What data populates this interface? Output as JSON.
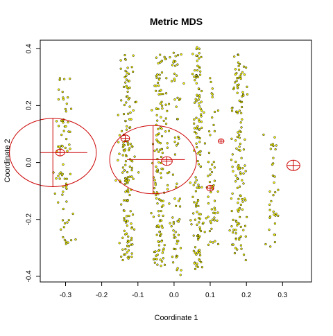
{
  "chart_data": {
    "type": "scatter",
    "title": "Metric MDS",
    "xlabel": "Coordinate 1",
    "ylabel": "Coordinate 2",
    "xlim": [
      -0.37,
      0.38
    ],
    "ylim": [
      -0.42,
      0.43
    ],
    "x_ticks": [
      -0.3,
      -0.2,
      -0.1,
      0.0,
      0.1,
      0.2,
      0.3
    ],
    "x_tick_labels": [
      "-0.3",
      "-0.2",
      "-0.1",
      "0.0",
      "0.1",
      "0.2",
      "0.3"
    ],
    "y_ticks": [
      -0.4,
      -0.2,
      0.0,
      0.2,
      0.4
    ],
    "y_tick_labels": [
      "-0.4",
      "-0.2",
      "0.0",
      "0.2",
      "0.4"
    ],
    "grid": false,
    "point_style": {
      "fill": "#ffff00",
      "stroke": "#000000"
    },
    "point_clusters": [
      {
        "x_center": -0.305,
        "x_spread": 0.022,
        "y_range": [
          -0.3,
          0.3
        ],
        "count": 75
      },
      {
        "x_center": -0.13,
        "x_spread": 0.018,
        "y_range": [
          -0.35,
          0.38
        ],
        "count": 160
      },
      {
        "x_center": -0.04,
        "x_spread": 0.016,
        "y_range": [
          -0.37,
          0.38
        ],
        "count": 150
      },
      {
        "x_center": 0.005,
        "x_spread": 0.014,
        "y_range": [
          -0.4,
          0.4
        ],
        "count": 70
      },
      {
        "x_center": 0.065,
        "x_spread": 0.014,
        "y_range": [
          -0.38,
          0.41
        ],
        "count": 140
      },
      {
        "x_center": 0.105,
        "x_spread": 0.012,
        "y_range": [
          -0.3,
          0.3
        ],
        "count": 55
      },
      {
        "x_center": 0.18,
        "x_spread": 0.018,
        "y_range": [
          -0.36,
          0.38
        ],
        "count": 140
      },
      {
        "x_center": 0.275,
        "x_spread": 0.016,
        "y_range": [
          -0.3,
          0.1
        ],
        "count": 35
      }
    ],
    "circles": [
      {
        "x": -0.315,
        "y": 0.035,
        "r": 0.012,
        "color": "#cc0000"
      },
      {
        "x": -0.135,
        "y": 0.085,
        "r": 0.012,
        "color": "#cc0000"
      },
      {
        "x": -0.02,
        "y": 0.005,
        "r": 0.015,
        "color": "#cc0000"
      },
      {
        "x": 0.1,
        "y": -0.09,
        "r": 0.01,
        "color": "#cc0000"
      },
      {
        "x": 0.13,
        "y": 0.075,
        "r": 0.008,
        "color": "#cc0000"
      },
      {
        "x": 0.33,
        "y": -0.01,
        "r": 0.018,
        "color": "#cc0000"
      },
      {
        "x": -0.335,
        "y": 0.035,
        "r": 0.12,
        "color": "#cc0000",
        "cross_line": [
          -0.37,
          -0.24
        ]
      },
      {
        "x": -0.058,
        "y": 0.01,
        "r": 0.12,
        "color": "#cc0000",
        "cross_line": [
          -0.13,
          0.03
        ]
      }
    ]
  }
}
